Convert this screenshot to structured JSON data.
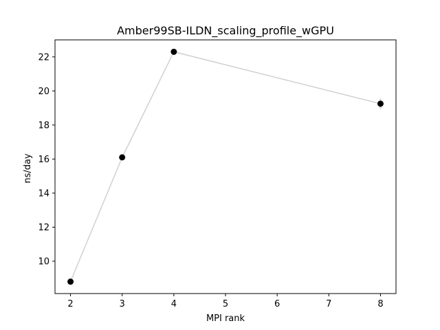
{
  "chart_data": {
    "type": "scatter",
    "title": "Amber99SB-ILDN_scaling_profile_wGPU",
    "xlabel": "MPI rank",
    "ylabel": "ns/day",
    "xlim": [
      1.7,
      8.3
    ],
    "ylim": [
      8.1,
      23.0
    ],
    "xticks": [
      2,
      3,
      4,
      5,
      6,
      7,
      8
    ],
    "yticks": [
      10,
      12,
      14,
      16,
      18,
      20,
      22
    ],
    "grid": false,
    "line_color": "#d3d3d3",
    "marker_color": "#000000",
    "series": [
      {
        "x": [
          2,
          3,
          4,
          8
        ],
        "y": [
          8.8,
          16.1,
          22.3,
          19.25
        ],
        "yerr": [
          0.05,
          0.05,
          0.08,
          0.3
        ]
      }
    ]
  }
}
